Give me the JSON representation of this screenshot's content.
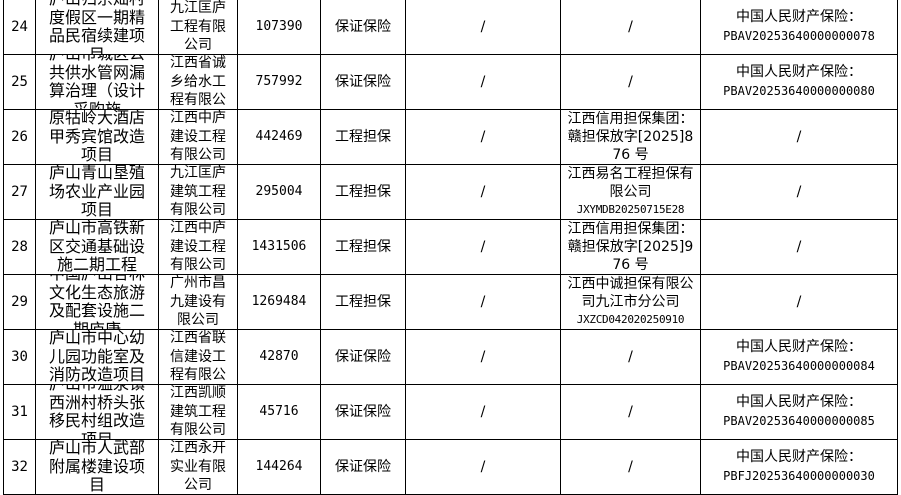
{
  "rows": [
    {
      "no": "24",
      "name": "庐山归宗灿村度假区一期精品民宿续建项目",
      "company": "九江匡庐工程有限公司",
      "amount": "107390",
      "type": "保证保险",
      "col6": "/",
      "guarantor": "/",
      "guarantor_code": "",
      "insurer": "中国人民财产保险：",
      "insurer_code": "PBAV20253640000000078"
    },
    {
      "no": "25",
      "name": "庐山市城区公共供水管网漏算治理（设计采购施",
      "company": "江西省诚乡给水工程有限公",
      "amount": "757992",
      "type": "保证保险",
      "col6": "/",
      "guarantor": "/",
      "guarantor_code": "",
      "insurer": "中国人民财产保险：",
      "insurer_code": "PBAV20253640000000080"
    },
    {
      "no": "26",
      "name": "原牯岭大酒店甲秀宾馆改造项目",
      "company": "江西中庐建设工程有限公司",
      "amount": "442469",
      "type": "工程担保",
      "col6": "/",
      "guarantor": "江西信用担保集团：赣担保放字[2025]876 号",
      "guarantor_code": "",
      "insurer": "/",
      "insurer_code": ""
    },
    {
      "no": "27",
      "name": "庐山青山垦殖场农业产业园项目",
      "company": "九江匡庐建筑工程有限公司",
      "amount": "295004",
      "type": "工程担保",
      "col6": "/",
      "guarantor": "江西易名工程担保有限公司",
      "guarantor_code": "JXYMDB20250715E28",
      "insurer": "/",
      "insurer_code": ""
    },
    {
      "no": "28",
      "name": "庐山市高铁新区交通基础设施二期工程",
      "company": "江西中庐建设工程有限公司",
      "amount": "1431506",
      "type": "工程担保",
      "col6": "/",
      "guarantor": "江西信用担保集团：赣担保放字[2025]976 号",
      "guarantor_code": "",
      "insurer": "/",
      "insurer_code": ""
    },
    {
      "no": "29",
      "name": "中国庐山杏林文化生态旅游及配套设施二期庐康",
      "company": "广州市昌九建设有限公司",
      "amount": "1269484",
      "type": "工程担保",
      "col6": "/",
      "guarantor": "江西中诚担保有限公司九江市分公司",
      "guarantor_code": "JXZCD042020250910",
      "insurer": "/",
      "insurer_code": ""
    },
    {
      "no": "30",
      "name": "庐山市中心幼儿园功能室及消防改造项目",
      "company": "江西省联信建设工程有限公",
      "amount": "42870",
      "type": "保证保险",
      "col6": "/",
      "guarantor": "/",
      "guarantor_code": "",
      "insurer": "中国人民财产保险：",
      "insurer_code": "PBAV20253640000000084"
    },
    {
      "no": "31",
      "name": "庐山市温泉镇西洲村桥头张移民村组改造项目",
      "company": "江西凯顺建筑工程有限公司",
      "amount": "45716",
      "type": "保证保险",
      "col6": "/",
      "guarantor": "/",
      "guarantor_code": "",
      "insurer": "中国人民财产保险：",
      "insurer_code": "PBAV20253640000000085"
    },
    {
      "no": "32",
      "name": "庐山市人武部附属楼建设项目",
      "company": "江西永开实业有限公司",
      "amount": "144264",
      "type": "保证保险",
      "col6": "/",
      "guarantor": "/",
      "guarantor_code": "",
      "insurer": "中国人民财产保险：",
      "insurer_code": "PBFJ20253640000000030"
    }
  ]
}
